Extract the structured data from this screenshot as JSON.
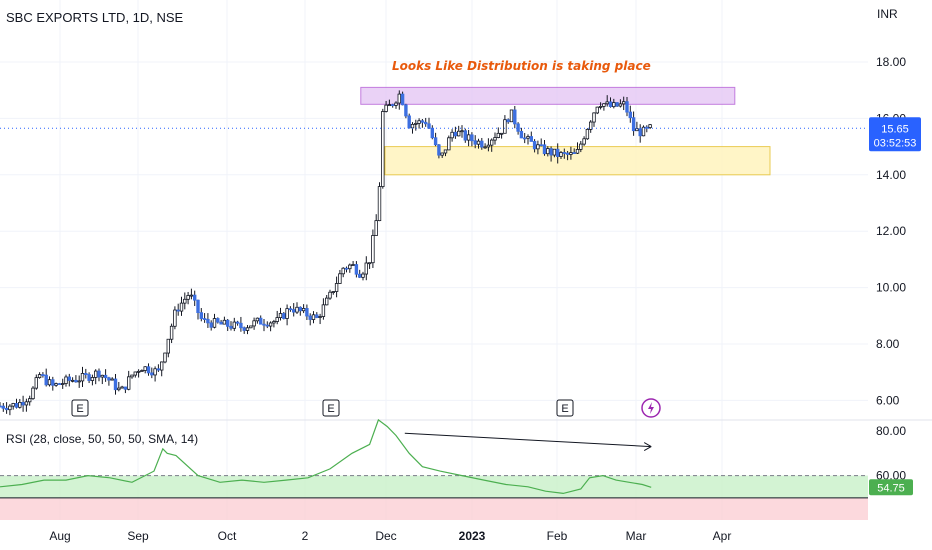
{
  "header": {
    "title": "SBC EXPORTS LTD, 1D, NSE",
    "currency": "INR"
  },
  "colors": {
    "up": "#ffffff",
    "down": "#3d6fe0",
    "wick": "#131722",
    "accent": "#2962ff",
    "rsi_line": "#4caf50",
    "distribution_zone": "#e6c8f5",
    "support_zone": "#fff5c2",
    "annotation": "#e8590c"
  },
  "annotation": {
    "text": "Looks Like Distribution is taking place"
  },
  "price_badge": {
    "price": "15.65",
    "countdown": "03:52:53"
  },
  "rsi_badge": {
    "value": "54.75"
  },
  "rsi_label": "RSI (28, close, 50, 50, 50, SMA, 14)",
  "event_markers": [
    {
      "label": "E"
    },
    {
      "label": "E"
    },
    {
      "label": "E"
    }
  ],
  "dividend_icon": "lightning-icon",
  "chart_data": [
    {
      "type": "candlestick",
      "title": "SBC EXPORTS LTD, 1D, NSE",
      "ylabel": "INR",
      "ylim": [
        5.6,
        19.0
      ],
      "y_ticks": [
        "6.00",
        "8.00",
        "10.00",
        "12.00",
        "14.00",
        "16.00",
        "18.00"
      ],
      "x_ticks": [
        "Aug",
        "Sep",
        "Oct",
        "2",
        "Dec",
        "2023",
        "Feb",
        "Mar",
        "Apr"
      ],
      "last_price": 15.65,
      "zones": [
        {
          "name": "distribution",
          "y_range": [
            16.5,
            17.1
          ]
        },
        {
          "name": "support",
          "y_range": [
            14.0,
            15.0
          ]
        }
      ],
      "close_path": [
        [
          0,
          5.8
        ],
        [
          8,
          5.85
        ],
        [
          14,
          6.2
        ],
        [
          18,
          6.9
        ],
        [
          24,
          6.5
        ],
        [
          31,
          6.7
        ],
        [
          38,
          6.8
        ],
        [
          45,
          7.0
        ],
        [
          50,
          6.7
        ],
        [
          55,
          6.3
        ],
        [
          60,
          6.9
        ],
        [
          64,
          7.2
        ],
        [
          72,
          7.0
        ],
        [
          80,
          9.2
        ],
        [
          86,
          9.8
        ],
        [
          92,
          8.8
        ],
        [
          100,
          8.7
        ],
        [
          110,
          8.6
        ],
        [
          118,
          8.8
        ],
        [
          126,
          8.8
        ],
        [
          132,
          9.3
        ],
        [
          138,
          9.1
        ],
        [
          144,
          8.9
        ],
        [
          150,
          9.7
        ],
        [
          156,
          10.7
        ],
        [
          160,
          10.8
        ],
        [
          164,
          10.5
        ],
        [
          168,
          11.0
        ],
        [
          172,
          12.8
        ],
        [
          174,
          16.2
        ],
        [
          178,
          16.5
        ],
        [
          182,
          16.9
        ],
        [
          186,
          15.8
        ],
        [
          194,
          15.9
        ],
        [
          200,
          14.5
        ],
        [
          206,
          15.6
        ],
        [
          212,
          15.3
        ],
        [
          220,
          15.1
        ],
        [
          228,
          15.6
        ],
        [
          232,
          16.2
        ],
        [
          238,
          15.3
        ],
        [
          246,
          14.9
        ],
        [
          254,
          14.7
        ],
        [
          262,
          14.7
        ],
        [
          268,
          15.9
        ],
        [
          272,
          16.6
        ],
        [
          278,
          16.4
        ],
        [
          284,
          16.5
        ],
        [
          288,
          15.6
        ],
        [
          292,
          15.5
        ],
        [
          296,
          15.65
        ]
      ]
    },
    {
      "type": "line",
      "name": "RSI (28, close, 50, 50, 50, SMA, 14)",
      "ylim": [
        42,
        84
      ],
      "y_ticks": [
        "60.00",
        "80.00"
      ],
      "bands": {
        "upper": 60,
        "lower": 50
      },
      "last_value": 54.75,
      "path": [
        [
          0,
          55
        ],
        [
          10,
          56
        ],
        [
          20,
          58
        ],
        [
          30,
          58
        ],
        [
          40,
          60
        ],
        [
          50,
          59
        ],
        [
          60,
          57
        ],
        [
          70,
          62
        ],
        [
          74,
          72
        ],
        [
          76,
          70
        ],
        [
          80,
          69
        ],
        [
          90,
          60
        ],
        [
          100,
          57
        ],
        [
          110,
          58
        ],
        [
          120,
          57
        ],
        [
          130,
          58
        ],
        [
          140,
          59
        ],
        [
          150,
          63
        ],
        [
          160,
          70
        ],
        [
          168,
          74
        ],
        [
          172,
          85
        ],
        [
          176,
          82
        ],
        [
          180,
          78
        ],
        [
          186,
          70
        ],
        [
          192,
          64
        ],
        [
          200,
          62
        ],
        [
          210,
          60
        ],
        [
          220,
          58
        ],
        [
          230,
          56
        ],
        [
          240,
          55
        ],
        [
          248,
          53
        ],
        [
          256,
          52
        ],
        [
          264,
          54
        ],
        [
          268,
          59
        ],
        [
          274,
          60
        ],
        [
          280,
          58
        ],
        [
          286,
          57
        ],
        [
          292,
          56
        ],
        [
          296,
          54.75
        ]
      ],
      "trend_arrow": {
        "from": [
          184,
          79
        ],
        "to": [
          296,
          73
        ]
      }
    }
  ]
}
